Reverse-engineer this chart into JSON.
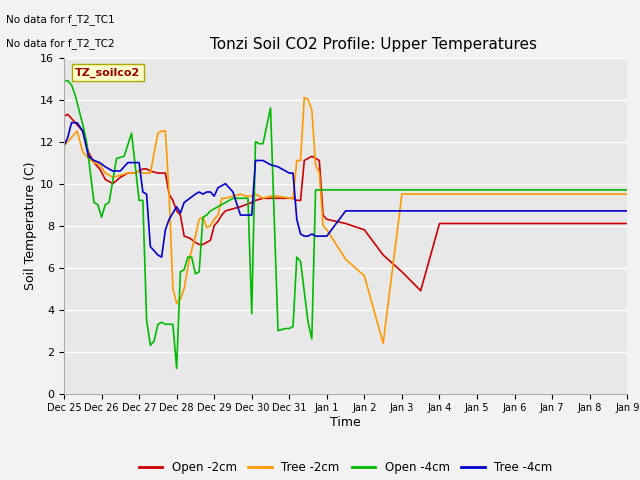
{
  "title": "Tonzi Soil CO2 Profile: Upper Temperatures",
  "xlabel": "Time",
  "ylabel": "Soil Temperature (C)",
  "top_left_text_line1": "No data for f_T2_TC1",
  "top_left_text_line2": "No data for f_T2_TC2",
  "box_label": "TZ_soilco2",
  "ylim": [
    0,
    16
  ],
  "xlim": [
    0,
    15
  ],
  "plot_bg_color": "#e8e8e8",
  "fig_bg_color": "#f2f2f2",
  "colors": {
    "open_2cm": "#cc0000",
    "tree_2cm": "#ff9900",
    "open_4cm": "#00bb00",
    "tree_4cm": "#0000cc"
  },
  "legend_labels": [
    "Open -2cm",
    "Tree -2cm",
    "Open -4cm",
    "Tree -4cm"
  ],
  "x_tick_labels": [
    "Dec 25",
    "Dec 26",
    "Dec 27",
    "Dec 28",
    "Dec 29",
    "Dec 30",
    "Dec 31",
    "Jan 1",
    "Jan 2",
    "Jan 3",
    "Jan 4",
    "Jan 5",
    "Jan 6",
    "Jan 7",
    "Jan 8",
    "Jan 9"
  ],
  "open_2cm_x": [
    0.0,
    0.1,
    0.2,
    0.35,
    0.5,
    0.65,
    0.8,
    0.95,
    1.1,
    1.2,
    1.3,
    1.5,
    1.7,
    1.9,
    2.0,
    2.1,
    2.2,
    2.3,
    2.5,
    2.6,
    2.7,
    2.8,
    2.9,
    3.0,
    3.1,
    3.2,
    3.35,
    3.5,
    3.6,
    3.7,
    3.8,
    3.9,
    4.0,
    4.1,
    4.2,
    4.3,
    4.5,
    4.7,
    4.85,
    5.0,
    5.1,
    5.3,
    5.5,
    5.7,
    6.0,
    6.1,
    6.2,
    6.3,
    6.4,
    6.5,
    6.6,
    6.7,
    6.8,
    6.9,
    7.0,
    7.5,
    8.0,
    8.5,
    9.0,
    9.5,
    10.0,
    10.5,
    11.0,
    11.5,
    12.0,
    12.5,
    13.0,
    13.5,
    14.0,
    14.5,
    15.0
  ],
  "open_2cm_y": [
    13.2,
    13.3,
    13.1,
    12.8,
    12.5,
    11.5,
    11.0,
    10.7,
    10.2,
    10.1,
    10.0,
    10.3,
    10.5,
    10.5,
    10.6,
    10.7,
    10.7,
    10.6,
    10.5,
    10.5,
    10.5,
    9.5,
    9.2,
    8.7,
    8.5,
    7.5,
    7.4,
    7.2,
    7.1,
    7.1,
    7.2,
    7.3,
    8.0,
    8.2,
    8.5,
    8.7,
    8.8,
    8.9,
    9.0,
    9.1,
    9.2,
    9.3,
    9.3,
    9.3,
    9.3,
    9.3,
    9.2,
    9.2,
    11.1,
    11.2,
    11.3,
    11.2,
    11.1,
    8.5,
    8.3,
    8.1,
    7.8,
    6.6,
    5.8,
    4.9,
    8.1,
    8.1,
    8.1,
    8.1,
    8.1,
    8.1,
    8.1,
    8.1,
    8.1,
    8.1,
    8.1
  ],
  "tree_2cm_x": [
    0.0,
    0.1,
    0.2,
    0.35,
    0.5,
    0.65,
    0.8,
    0.95,
    1.1,
    1.2,
    1.3,
    1.5,
    1.7,
    1.9,
    2.0,
    2.1,
    2.2,
    2.3,
    2.5,
    2.6,
    2.7,
    2.8,
    2.9,
    3.0,
    3.1,
    3.2,
    3.35,
    3.5,
    3.6,
    3.7,
    3.8,
    3.9,
    4.0,
    4.1,
    4.2,
    4.3,
    4.5,
    4.7,
    4.85,
    5.0,
    5.1,
    5.3,
    5.5,
    5.7,
    6.0,
    6.1,
    6.2,
    6.3,
    6.4,
    6.5,
    6.6,
    6.7,
    6.8,
    6.9,
    7.0,
    7.5,
    8.0,
    8.5,
    9.0,
    9.5,
    10.0,
    10.5,
    11.0,
    11.5,
    12.0,
    12.5,
    13.0,
    13.5,
    14.0,
    14.5,
    15.0
  ],
  "tree_2cm_y": [
    11.8,
    12.0,
    12.2,
    12.5,
    11.5,
    11.2,
    11.0,
    10.9,
    10.5,
    10.4,
    10.3,
    10.4,
    10.5,
    10.5,
    10.6,
    10.5,
    10.5,
    10.5,
    12.4,
    12.5,
    12.5,
    9.5,
    5.0,
    4.3,
    4.5,
    5.0,
    6.5,
    7.5,
    8.3,
    8.4,
    7.9,
    8.0,
    8.3,
    8.5,
    9.3,
    9.3,
    9.4,
    9.5,
    9.4,
    9.4,
    9.5,
    9.3,
    9.4,
    9.4,
    9.3,
    9.3,
    11.1,
    11.1,
    14.1,
    14.0,
    13.5,
    10.9,
    10.5,
    8.0,
    7.8,
    6.4,
    5.6,
    2.4,
    9.5,
    9.5,
    9.5,
    9.5,
    9.5,
    9.5,
    9.5,
    9.5,
    9.5,
    9.5,
    9.5,
    9.5,
    9.5
  ],
  "open_4cm_x": [
    0.0,
    0.1,
    0.2,
    0.3,
    0.4,
    0.5,
    0.6,
    0.8,
    0.9,
    1.0,
    1.1,
    1.2,
    1.4,
    1.6,
    1.8,
    2.0,
    2.1,
    2.2,
    2.3,
    2.4,
    2.5,
    2.6,
    2.7,
    2.8,
    2.9,
    3.0,
    3.1,
    3.2,
    3.3,
    3.4,
    3.5,
    3.6,
    3.7,
    3.8,
    3.9,
    4.0,
    4.1,
    4.2,
    4.4,
    4.5,
    4.6,
    4.7,
    4.9,
    5.0,
    5.1,
    5.2,
    5.3,
    5.5,
    5.7,
    5.9,
    6.0,
    6.1,
    6.2,
    6.3,
    6.5,
    6.6,
    6.7,
    6.8,
    6.9,
    7.0,
    7.5,
    8.0,
    8.5,
    9.0,
    9.5,
    10.0,
    10.5,
    11.0,
    11.5,
    12.0,
    12.5,
    13.0,
    13.5,
    14.0,
    14.5,
    15.0
  ],
  "open_4cm_y": [
    14.9,
    14.9,
    14.7,
    14.2,
    13.5,
    12.8,
    12.0,
    9.1,
    9.0,
    8.4,
    9.0,
    9.1,
    11.2,
    11.3,
    12.4,
    9.2,
    9.2,
    3.5,
    2.3,
    2.5,
    3.3,
    3.4,
    3.3,
    3.3,
    3.3,
    1.2,
    5.8,
    5.9,
    6.5,
    6.5,
    5.7,
    5.8,
    8.4,
    8.5,
    8.7,
    8.8,
    8.9,
    9.0,
    9.2,
    9.3,
    9.3,
    9.3,
    9.3,
    3.8,
    12.0,
    11.9,
    11.9,
    13.6,
    3.0,
    3.1,
    3.1,
    3.2,
    6.5,
    6.3,
    3.4,
    2.6,
    9.7,
    9.7,
    9.7,
    9.7,
    9.7,
    9.7,
    9.7,
    9.7,
    9.7,
    9.7,
    9.7,
    9.7,
    9.7,
    9.7,
    9.7,
    9.7,
    9.7,
    9.7,
    9.7,
    9.7
  ],
  "tree_4cm_x": [
    0.0,
    0.1,
    0.2,
    0.35,
    0.5,
    0.65,
    0.8,
    0.95,
    1.1,
    1.2,
    1.3,
    1.5,
    1.7,
    1.9,
    2.0,
    2.1,
    2.2,
    2.3,
    2.5,
    2.6,
    2.7,
    2.8,
    2.9,
    3.0,
    3.1,
    3.2,
    3.35,
    3.5,
    3.6,
    3.7,
    3.8,
    3.9,
    4.0,
    4.1,
    4.2,
    4.3,
    4.5,
    4.7,
    4.85,
    5.0,
    5.1,
    5.3,
    5.5,
    5.7,
    6.0,
    6.1,
    6.2,
    6.3,
    6.4,
    6.5,
    6.6,
    6.7,
    6.8,
    6.9,
    7.0,
    7.5,
    8.0,
    8.5,
    9.0,
    9.5,
    10.0,
    10.5,
    11.0,
    11.5,
    12.0,
    12.5,
    13.0,
    13.5,
    14.0,
    14.5,
    15.0
  ],
  "tree_4cm_y": [
    11.8,
    12.2,
    12.9,
    12.9,
    12.5,
    11.3,
    11.1,
    11.0,
    10.8,
    10.7,
    10.6,
    10.6,
    11.0,
    11.0,
    11.0,
    9.6,
    9.5,
    7.0,
    6.6,
    6.5,
    7.8,
    8.3,
    8.6,
    8.9,
    8.6,
    9.1,
    9.3,
    9.5,
    9.6,
    9.5,
    9.6,
    9.6,
    9.4,
    9.8,
    9.9,
    10.0,
    9.6,
    8.5,
    8.5,
    8.5,
    11.1,
    11.1,
    10.9,
    10.8,
    10.5,
    10.5,
    8.3,
    7.6,
    7.5,
    7.5,
    7.6,
    7.5,
    7.5,
    7.5,
    7.5,
    8.7,
    8.7,
    8.7,
    8.7,
    8.7,
    8.7,
    8.7,
    8.7,
    8.7,
    8.7,
    8.7,
    8.7,
    8.7,
    8.7,
    8.7,
    8.7
  ]
}
